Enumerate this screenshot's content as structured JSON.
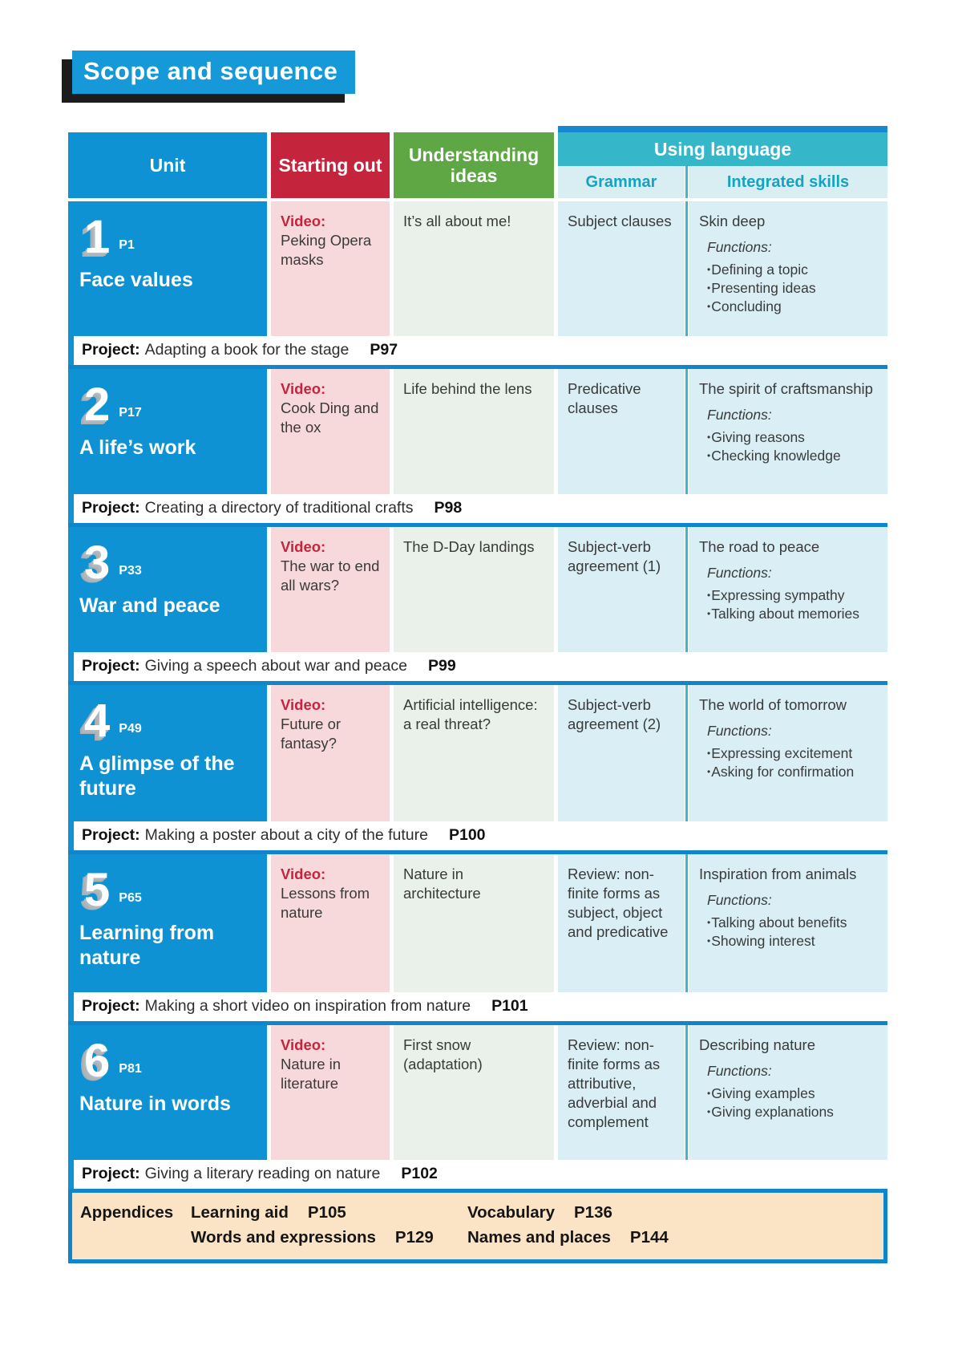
{
  "page_title": "Scope and sequence",
  "table": {
    "headers": {
      "unit": "Unit",
      "starting_out": "Starting out",
      "understanding_ideas": "Understanding ideas",
      "using_language": "Using language",
      "grammar": "Grammar",
      "integrated_skills": "Integrated skills"
    },
    "units": [
      {
        "number": "1",
        "page": "P1",
        "title": "Face values",
        "video_label": "Video:",
        "video": "Peking Opera masks",
        "understanding_ideas": "It’s all about me!",
        "grammar": "Subject clauses",
        "skills_title": "Skin deep",
        "functions_label": "Functions:",
        "functions": [
          "Defining a topic",
          "Presenting ideas",
          "Concluding"
        ],
        "project_label": "Project:",
        "project": "Adapting a book for the stage",
        "project_page": "P97"
      },
      {
        "number": "2",
        "page": "P17",
        "title": "A life’s work",
        "video_label": "Video:",
        "video": "Cook Ding and the ox",
        "understanding_ideas": "Life behind the lens",
        "grammar": "Predicative clauses",
        "skills_title": "The spirit of craftsmanship",
        "functions_label": "Functions:",
        "functions": [
          "Giving reasons",
          "Checking knowledge"
        ],
        "project_label": "Project:",
        "project": "Creating a directory of traditional crafts",
        "project_page": "P98"
      },
      {
        "number": "3",
        "page": "P33",
        "title": "War and peace",
        "video_label": "Video:",
        "video": "The war to end all wars?",
        "understanding_ideas": "The D-Day landings",
        "grammar": "Subject-verb agreement (1)",
        "skills_title": "The road to peace",
        "functions_label": "Functions:",
        "functions": [
          "Expressing sympathy",
          "Talking about memories"
        ],
        "project_label": "Project:",
        "project": "Giving a speech about war and peace",
        "project_page": "P99"
      },
      {
        "number": "4",
        "page": "P49",
        "title": "A glimpse of the future",
        "video_label": "Video:",
        "video": "Future or fantasy?",
        "understanding_ideas": "Artificial intelligence: a real threat?",
        "grammar": "Subject-verb agreement (2)",
        "skills_title": "The world of tomorrow",
        "functions_label": "Functions:",
        "functions": [
          "Expressing excitement",
          "Asking for confirmation"
        ],
        "project_label": "Project:",
        "project": "Making a poster about a city of the future",
        "project_page": "P100"
      },
      {
        "number": "5",
        "page": "P65",
        "title": "Learning from nature",
        "video_label": "Video:",
        "video": "Lessons from nature",
        "understanding_ideas": "Nature in architecture",
        "grammar": "Review: non-finite forms as subject, object and predicative",
        "skills_title": "Inspiration from animals",
        "functions_label": "Functions:",
        "functions": [
          "Talking about benefits",
          "Showing interest"
        ],
        "project_label": "Project:",
        "project": "Making a short video on inspiration from nature",
        "project_page": "P101"
      },
      {
        "number": "6",
        "page": "P81",
        "title": "Nature in words",
        "video_label": "Video:",
        "video": "Nature in literature",
        "understanding_ideas": "First snow (adaptation)",
        "grammar": "Review: non-finite forms as attributive, adverbial and complement",
        "skills_title": "Describing nature",
        "functions_label": "Functions:",
        "functions": [
          "Giving examples",
          "Giving explanations"
        ],
        "project_label": "Project:",
        "project": "Giving a literary reading on nature",
        "project_page": "P102"
      }
    ],
    "appendices": {
      "label": "Appendices",
      "items": [
        {
          "label": "Learning aid",
          "page": "P105"
        },
        {
          "label": "Vocabulary",
          "page": "P136"
        },
        {
          "label": "Words and expressions",
          "page": "P129"
        },
        {
          "label": "Names and places",
          "page": "P144"
        }
      ]
    }
  }
}
